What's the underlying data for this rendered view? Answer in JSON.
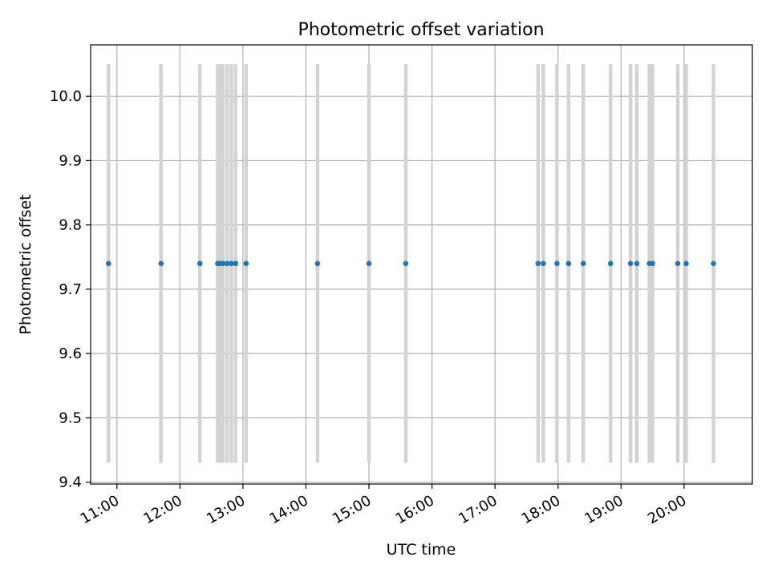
{
  "chart_data": {
    "type": "scatter",
    "title": "Photometric offset variation",
    "xlabel": "UTC time",
    "ylabel": "Photometric offset",
    "x_ticks": [
      "11:00",
      "12:00",
      "13:00",
      "14:00",
      "15:00",
      "16:00",
      "17:00",
      "18:00",
      "19:00",
      "20:00"
    ],
    "x_tick_hours": [
      11,
      12,
      13,
      14,
      15,
      16,
      17,
      18,
      19,
      20
    ],
    "y_ticks": [
      "9.4",
      "9.5",
      "9.6",
      "9.7",
      "9.8",
      "9.9",
      "10.0"
    ],
    "y_tick_values": [
      9.4,
      9.5,
      9.6,
      9.7,
      9.8,
      9.9,
      10.0
    ],
    "xlim": [
      "10:35",
      "21:05"
    ],
    "ylim": [
      9.397,
      10.08
    ],
    "grid": true,
    "errorbar_range": [
      9.43,
      10.05
    ],
    "series": [
      {
        "x": [
          "10:52",
          "11:42",
          "12:19",
          "12:36",
          "12:38",
          "12:41",
          "12:45",
          "12:49",
          "12:53",
          "13:03",
          "14:11",
          "15:00",
          "15:35",
          "17:41",
          "17:46",
          "17:59",
          "18:10",
          "18:24",
          "18:50",
          "19:09",
          "19:15",
          "19:27",
          "19:30",
          "19:54",
          "20:02",
          "20:28"
        ],
        "y": [
          9.74,
          9.74,
          9.74,
          9.74,
          9.74,
          9.74,
          9.74,
          9.74,
          9.74,
          9.74,
          9.74,
          9.74,
          9.74,
          9.74,
          9.74,
          9.74,
          9.74,
          9.74,
          9.74,
          9.74,
          9.74,
          9.74,
          9.74,
          9.74,
          9.74,
          9.74
        ]
      }
    ],
    "colors": {
      "points": "#1f77b4",
      "errorbars": "#d3d3d3",
      "grid": "#b0b0b0",
      "axes": "#000000"
    }
  }
}
